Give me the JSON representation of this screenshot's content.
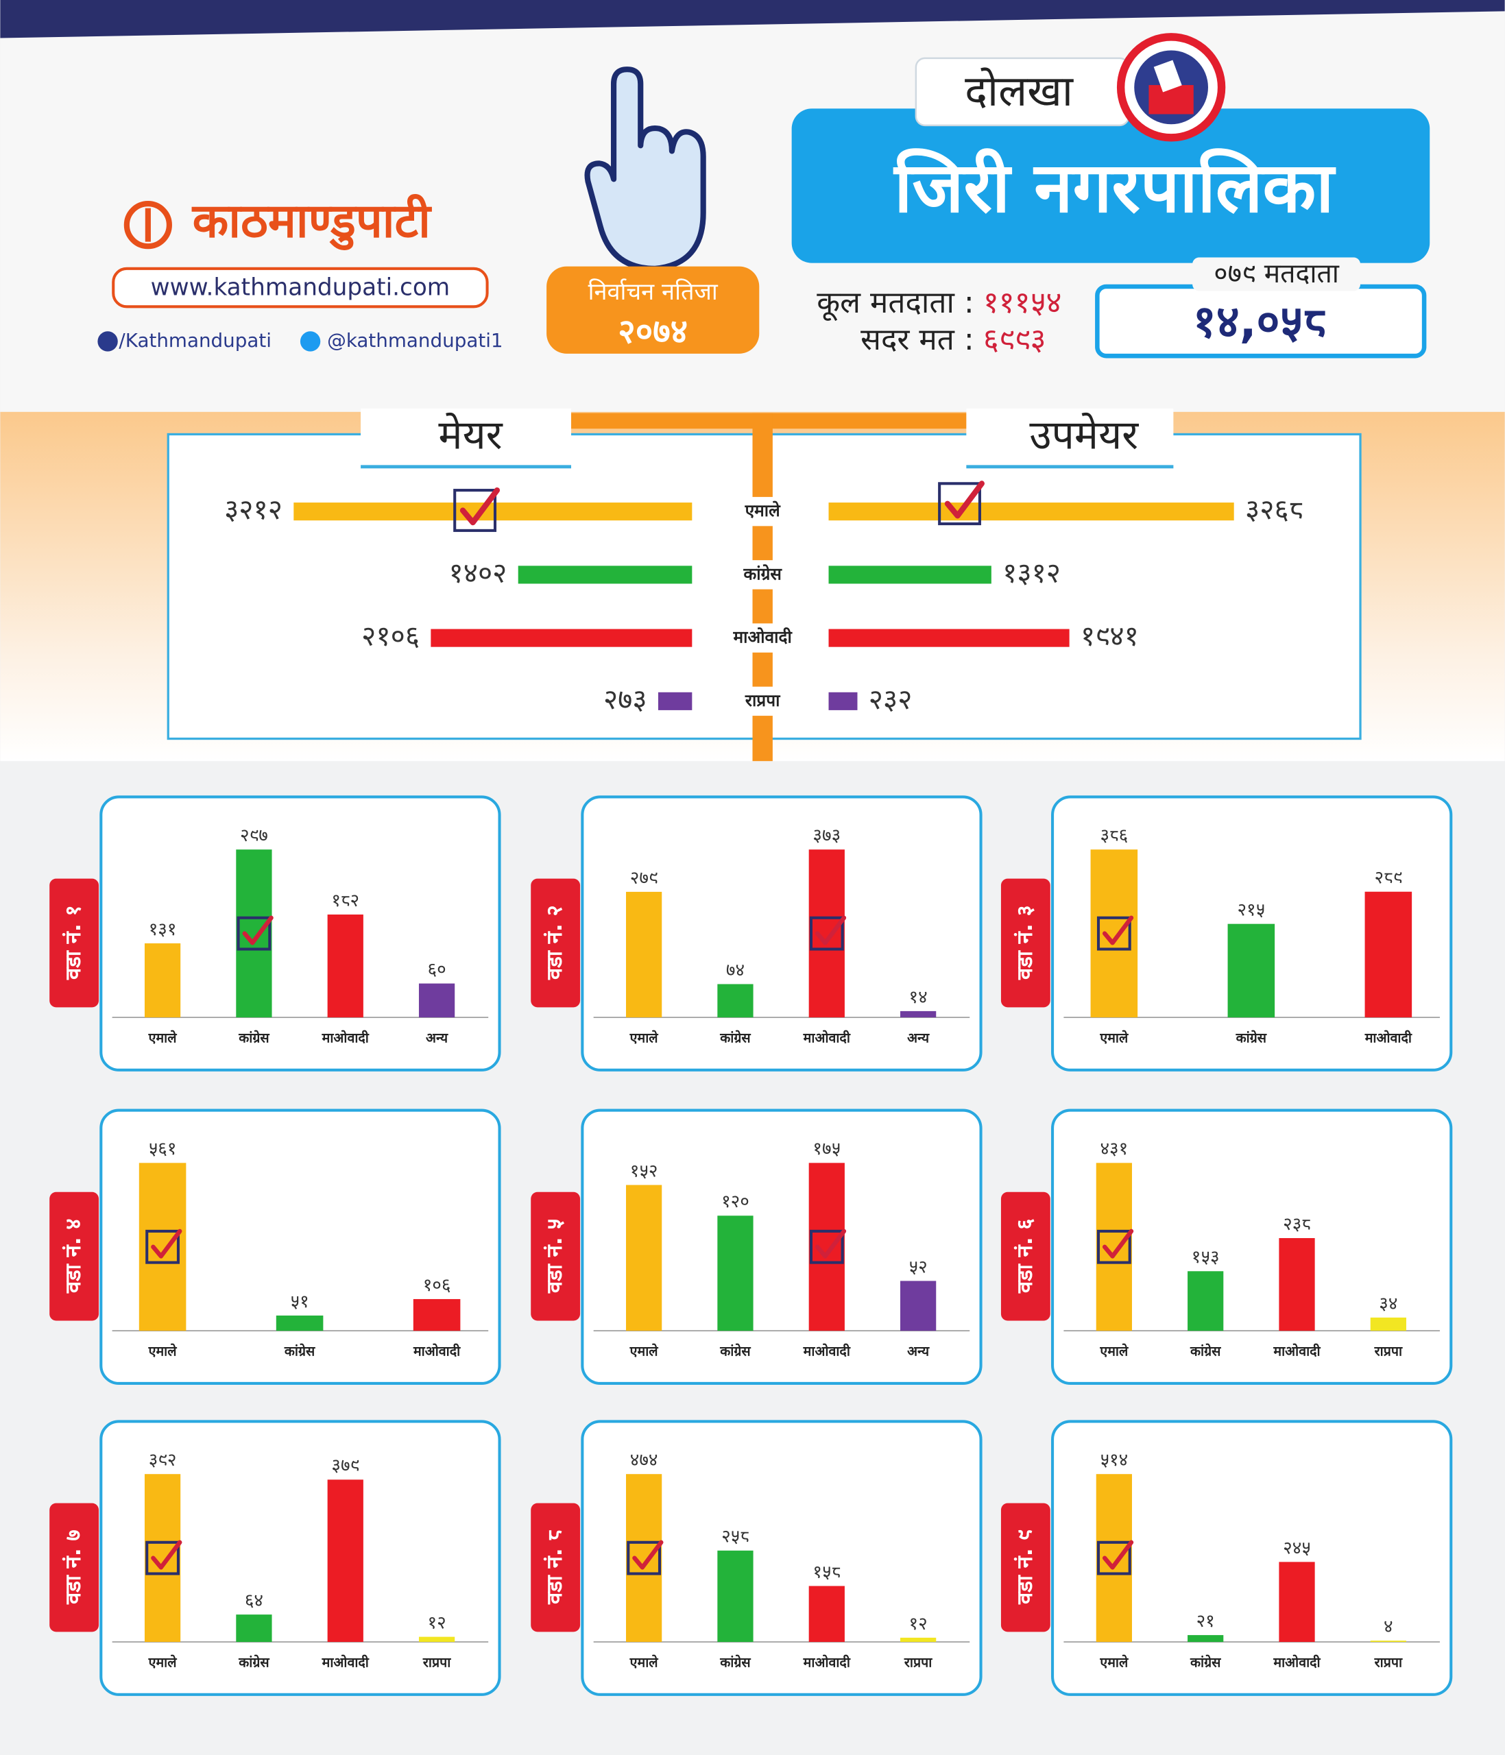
{
  "header": {
    "logo": "काठमाण्डुपाटी",
    "website": "www.kathmandupati.com",
    "facebook": "/Kathmandupati",
    "twitter": "@kathmandupati1",
    "badge_title": "निर्वाचन नतिजा",
    "badge_year": "२०७४",
    "district": "दोलखा",
    "municipality": "जिरी नगरपालिका",
    "total_voters_label": "कूल मतदाता :",
    "total_voters": "१११५४",
    "valid_votes_label": "सदर मत :",
    "valid_votes": "६९९३",
    "voters_079_label": "०७९ मतदाता",
    "voters_079": "१४,०५८"
  },
  "chart_data": [
    {
      "type": "bar",
      "orientation": "horizontal",
      "title": "मेयर",
      "categories": [
        "एमाले",
        "कांग्रेस",
        "माओवादी",
        "राप्रपा"
      ],
      "values": [
        3212,
        1402,
        2106,
        273
      ],
      "value_labels": [
        "३२१२",
        "१४०२",
        "२१०६",
        "२७३"
      ],
      "colors": [
        "#f9b914",
        "#23b33a",
        "#ec1c24",
        "#6f3c9e"
      ],
      "winner": "एमाले"
    },
    {
      "type": "bar",
      "orientation": "horizontal",
      "title": "उपमेयर",
      "values": [
        3268,
        1312,
        1941,
        232
      ],
      "value_labels": [
        "३२६८",
        "१३१२",
        "१९४१",
        "२३२"
      ],
      "colors": [
        "#f9b914",
        "#23b33a",
        "#ec1c24",
        "#6f3c9e"
      ],
      "winner": "एमाले"
    },
    {
      "type": "bar",
      "title": "वडा नं. १",
      "categories": [
        "एमाले",
        "कांग्रेस",
        "माओवादी",
        "अन्य"
      ],
      "values": [
        131,
        297,
        182,
        60
      ],
      "value_labels": [
        "१३१",
        "२९७",
        "१८२",
        "६०"
      ],
      "colors": [
        "#f9b914",
        "#23b33a",
        "#ec1c24",
        "#6f3c9e"
      ],
      "winner": "कांग्रेस"
    },
    {
      "type": "bar",
      "title": "वडा नं. २",
      "categories": [
        "एमाले",
        "कांग्रेस",
        "माओवादी",
        "अन्य"
      ],
      "values": [
        279,
        74,
        373,
        14
      ],
      "value_labels": [
        "२७९",
        "७४",
        "३७३",
        "१४"
      ],
      "colors": [
        "#f9b914",
        "#23b33a",
        "#ec1c24",
        "#6f3c9e"
      ],
      "winner": "माओवादी"
    },
    {
      "type": "bar",
      "title": "वडा नं. ३",
      "categories": [
        "एमाले",
        "कांग्रेस",
        "माओवादी"
      ],
      "values": [
        386,
        215,
        289
      ],
      "value_labels": [
        "३८६",
        "२१५",
        "२८९"
      ],
      "colors": [
        "#f9b914",
        "#23b33a",
        "#ec1c24"
      ],
      "winner": "एमाले"
    },
    {
      "type": "bar",
      "title": "वडा नं. ४",
      "categories": [
        "एमाले",
        "कांग्रेस",
        "माओवादी"
      ],
      "values": [
        561,
        51,
        106
      ],
      "value_labels": [
        "५६१",
        "५१",
        "१०६"
      ],
      "colors": [
        "#f9b914",
        "#23b33a",
        "#ec1c24"
      ],
      "winner": "एमाले"
    },
    {
      "type": "bar",
      "title": "वडा नं. ५",
      "categories": [
        "एमाले",
        "कांग्रेस",
        "माओवादी",
        "अन्य"
      ],
      "values": [
        152,
        120,
        175,
        52
      ],
      "value_labels": [
        "१५२",
        "१२०",
        "१७५",
        "५२"
      ],
      "colors": [
        "#f9b914",
        "#23b33a",
        "#ec1c24",
        "#6f3c9e"
      ],
      "winner": "माओवादी"
    },
    {
      "type": "bar",
      "title": "वडा नं. ६",
      "categories": [
        "एमाले",
        "कांग्रेस",
        "माओवादी",
        "राप्रपा"
      ],
      "values": [
        431,
        153,
        238,
        34
      ],
      "value_labels": [
        "४३१",
        "१५३",
        "२३८",
        "३४"
      ],
      "colors": [
        "#f9b914",
        "#23b33a",
        "#ec1c24",
        "#f2e622"
      ],
      "winner": "एमाले"
    },
    {
      "type": "bar",
      "title": "वडा नं. ७",
      "categories": [
        "एमाले",
        "कांग्रेस",
        "माओवादी",
        "राप्रपा"
      ],
      "values": [
        392,
        64,
        379,
        12
      ],
      "value_labels": [
        "३९२",
        "६४",
        "३७९",
        "१२"
      ],
      "colors": [
        "#f9b914",
        "#23b33a",
        "#ec1c24",
        "#f2e622"
      ],
      "winner": "एमाले"
    },
    {
      "type": "bar",
      "title": "वडा नं. ८",
      "categories": [
        "एमाले",
        "कांग्रेस",
        "माओवादी",
        "राप्रपा"
      ],
      "values": [
        474,
        258,
        158,
        12
      ],
      "value_labels": [
        "४७४",
        "२५८",
        "१५८",
        "१२"
      ],
      "colors": [
        "#f9b914",
        "#23b33a",
        "#ec1c24",
        "#f2e622"
      ],
      "winner": "एमाले"
    },
    {
      "type": "bar",
      "title": "वडा नं. ९",
      "categories": [
        "एमाले",
        "कांग्रेस",
        "माओवादी",
        "राप्रपा"
      ],
      "values": [
        514,
        21,
        245,
        4
      ],
      "value_labels": [
        "५१४",
        "२१",
        "२४५",
        "४"
      ],
      "colors": [
        "#f9b914",
        "#23b33a",
        "#ec1c24",
        "#f2e622"
      ],
      "winner": "एमाले"
    }
  ]
}
